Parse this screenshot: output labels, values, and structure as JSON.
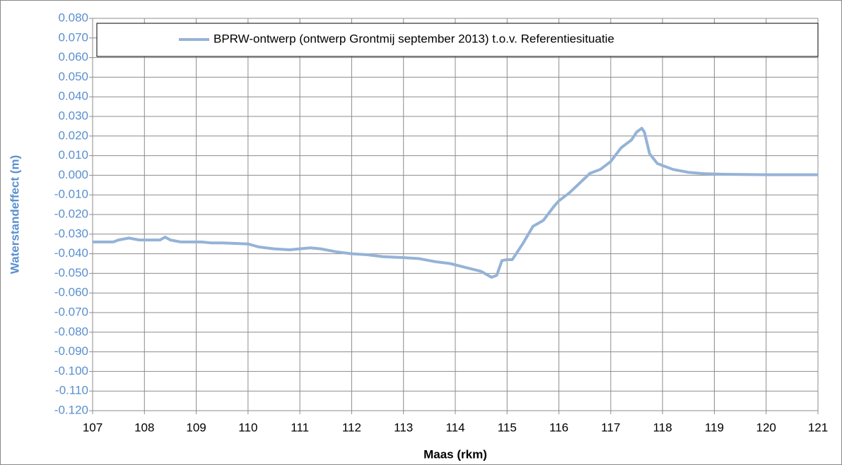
{
  "chart_data": {
    "type": "line",
    "x": [
      107,
      107.2,
      107.4,
      107.5,
      107.7,
      107.9,
      108.1,
      108.3,
      108.4,
      108.5,
      108.7,
      108.9,
      109.1,
      109.3,
      109.5,
      109.8,
      110,
      110.2,
      110.5,
      110.8,
      111,
      111.2,
      111.4,
      111.7,
      112,
      112.3,
      112.6,
      113,
      113.3,
      113.6,
      113.9,
      114.2,
      114.5,
      114.7,
      114.8,
      114.9,
      115,
      115.1,
      115.3,
      115.5,
      115.7,
      115.9,
      116,
      116.2,
      116.4,
      116.6,
      116.8,
      117,
      117.2,
      117.4,
      117.5,
      117.6,
      117.65,
      117.75,
      117.9,
      118.2,
      118.5,
      118.8,
      119.2,
      120,
      121
    ],
    "series": [
      {
        "name": "BPRW-ontwerp (ontwerp Grontmij september 2013) t.o.v. Referentiesituatie",
        "color": "#95b3d7",
        "values": [
          -0.034,
          -0.034,
          -0.034,
          -0.033,
          -0.032,
          -0.033,
          -0.033,
          -0.033,
          -0.0315,
          -0.033,
          -0.034,
          -0.034,
          -0.034,
          -0.0345,
          -0.0345,
          -0.0348,
          -0.035,
          -0.0365,
          -0.0375,
          -0.038,
          -0.0375,
          -0.037,
          -0.0375,
          -0.039,
          -0.04,
          -0.0405,
          -0.0415,
          -0.042,
          -0.0425,
          -0.044,
          -0.045,
          -0.047,
          -0.049,
          -0.052,
          -0.051,
          -0.0435,
          -0.043,
          -0.043,
          -0.035,
          -0.026,
          -0.023,
          -0.016,
          -0.013,
          -0.009,
          -0.004,
          0.001,
          0.003,
          0.007,
          0.014,
          0.018,
          0.022,
          0.024,
          0.022,
          0.011,
          0.006,
          0.003,
          0.0015,
          0.0008,
          0.0005,
          0.0003,
          0.0003
        ]
      }
    ],
    "xlabel": "Maas (rkm)",
    "ylabel": "Waterstandeffect (m)",
    "xlim": [
      107,
      121
    ],
    "xticks": [
      107,
      108,
      109,
      110,
      111,
      112,
      113,
      114,
      115,
      116,
      117,
      118,
      119,
      120,
      121
    ],
    "ylim": [
      -0.12,
      0.08
    ],
    "yticks": [
      {
        "value": 0.08,
        "label": "0.080"
      },
      {
        "value": 0.07,
        "label": "0.070"
      },
      {
        "value": 0.06,
        "label": "0.060"
      },
      {
        "value": 0.05,
        "label": "0.050"
      },
      {
        "value": 0.04,
        "label": "0.040"
      },
      {
        "value": 0.03,
        "label": "0.030"
      },
      {
        "value": 0.02,
        "label": "0.020"
      },
      {
        "value": 0.01,
        "label": "0.010"
      },
      {
        "value": 0,
        "label": "0.000"
      },
      {
        "value": -0.01,
        "label": "-0.010"
      },
      {
        "value": -0.02,
        "label": "-0.020"
      },
      {
        "value": -0.03,
        "label": "-0.030"
      },
      {
        "value": -0.04,
        "label": "-0.040"
      },
      {
        "value": -0.05,
        "label": "-0.050"
      },
      {
        "value": -0.06,
        "label": "-0.060"
      },
      {
        "value": -0.07,
        "label": "-0.070"
      },
      {
        "value": -0.08,
        "label": "-0.080"
      },
      {
        "value": -0.09,
        "label": "-0.090"
      },
      {
        "value": -0.1,
        "label": "-0.100"
      },
      {
        "value": -0.11,
        "label": "-0.110"
      },
      {
        "value": -0.12,
        "label": "-0.120"
      }
    ],
    "grid": true,
    "legend": "top"
  }
}
